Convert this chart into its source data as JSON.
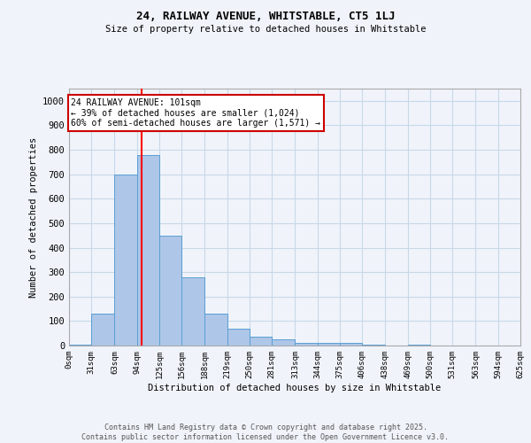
{
  "title1": "24, RAILWAY AVENUE, WHITSTABLE, CT5 1LJ",
  "title2": "Size of property relative to detached houses in Whitstable",
  "xlabel": "Distribution of detached houses by size in Whitstable",
  "ylabel": "Number of detached properties",
  "bin_edges": [
    0,
    31,
    63,
    94,
    125,
    156,
    188,
    219,
    250,
    281,
    313,
    344,
    375,
    406,
    438,
    469,
    500,
    531,
    563,
    594,
    625
  ],
  "bar_heights": [
    5,
    130,
    700,
    780,
    450,
    278,
    132,
    68,
    38,
    25,
    12,
    12,
    10,
    3,
    0,
    5,
    0,
    0,
    0,
    0
  ],
  "bar_color": "#aec6e8",
  "bar_edgecolor": "#5a9fd4",
  "grid_color": "#c8d8e8",
  "background_color": "#f0f4fa",
  "red_line_x": 101,
  "annotation_text": "24 RAILWAY AVENUE: 101sqm\n← 39% of detached houses are smaller (1,024)\n60% of semi-detached houses are larger (1,571) →",
  "annotation_box_color": "#ffffff",
  "annotation_box_edgecolor": "#cc0000",
  "ylim": [
    0,
    1050
  ],
  "yticks": [
    0,
    100,
    200,
    300,
    400,
    500,
    600,
    700,
    800,
    900,
    1000
  ],
  "footer_line1": "Contains HM Land Registry data © Crown copyright and database right 2025.",
  "footer_line2": "Contains public sector information licensed under the Open Government Licence v3.0."
}
